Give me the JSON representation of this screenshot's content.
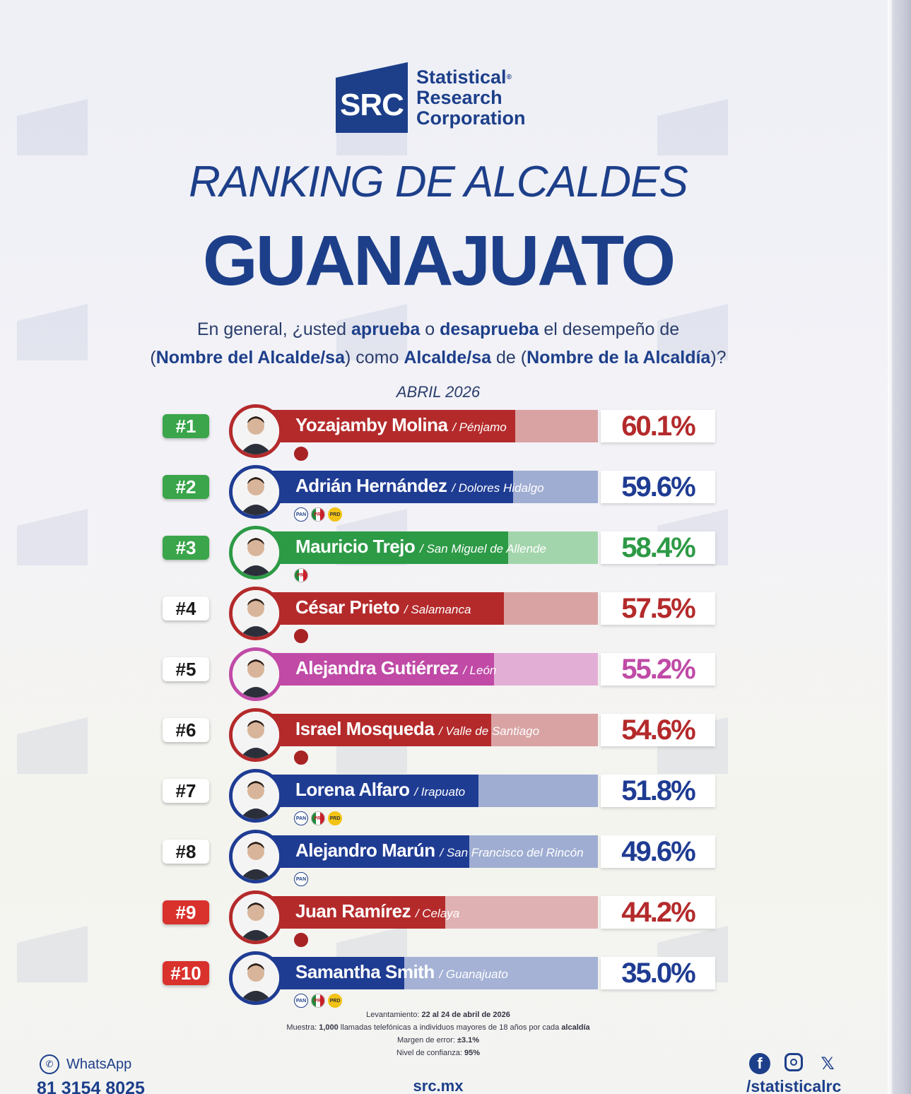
{
  "brand": {
    "logo_mark": "SRC",
    "line1": "Statistical",
    "line2": "Research",
    "line3": "Corporation"
  },
  "title_line1": "RANKING DE ALCALDES",
  "title_line2": "GUANAJUATO",
  "question": {
    "p1": "En general, ¿usted ",
    "b1": "aprueba",
    "p2": " o ",
    "b2": "desaprueba",
    "p3": " el desempeño de",
    "p4": "(",
    "b3": "Nombre del Alcalde/sa",
    "p5": ") como ",
    "b4": "Alcalde/sa",
    "p6": " de (",
    "b5": "Nombre de la Alcaldía",
    "p7": ")?"
  },
  "month": "ABRIL 2026",
  "chart_data": {
    "type": "bar",
    "categories": [
      "Yozajamby Molina",
      "Adrián Hernández",
      "Mauricio Trejo",
      "César Prieto",
      "Alejandra Gutiérrez",
      "Israel Mosqueda",
      "Lorena Alfaro",
      "Alejandro Marún",
      "Juan Ramírez",
      "Samantha Smith"
    ],
    "values": [
      60.1,
      59.6,
      58.4,
      57.5,
      55.2,
      54.6,
      51.8,
      49.6,
      44.2,
      35.0
    ],
    "xlim": [
      0,
      100
    ],
    "rows": [
      {
        "rank": "#1",
        "name": "Yozajamby Molina",
        "city": "/ Pénjamo",
        "value": 60.1,
        "pct": "60.1%",
        "color": "#b42a2b",
        "light": "#d9a3a4",
        "rank_color": "#3aa54a",
        "parties": [
          "morena"
        ]
      },
      {
        "rank": "#2",
        "name": "Adrián Hernández",
        "city": "/ Dolores Hidalgo",
        "value": 59.6,
        "pct": "59.6%",
        "color": "#1f3c93",
        "light": "#9fadd2",
        "rank_color": "#3aa54a",
        "parties": [
          "pan",
          "pri",
          "prd"
        ]
      },
      {
        "rank": "#3",
        "name": "Mauricio Trejo",
        "city": "/ San Miguel de Allende",
        "value": 58.4,
        "pct": "58.4%",
        "color": "#2d9a46",
        "light": "#a3d5ac",
        "rank_color": "#3aa54a",
        "parties": [
          "pri"
        ]
      },
      {
        "rank": "#4",
        "name": "César Prieto",
        "city": "/ Salamanca",
        "value": 57.5,
        "pct": "57.5%",
        "color": "#b42a2b",
        "light": "#d9a3a4",
        "rank_color": "white",
        "parties": [
          "morena"
        ]
      },
      {
        "rank": "#5",
        "name": "Alejandra Gutiérrez",
        "city": "/ León",
        "value": 55.2,
        "pct": "55.2%",
        "color": "#c04aa6",
        "light": "#e2aed6",
        "rank_color": "white",
        "parties": []
      },
      {
        "rank": "#6",
        "name": "Israel Mosqueda",
        "city": "/ Valle de Santiago",
        "value": 54.6,
        "pct": "54.6%",
        "color": "#b42a2b",
        "light": "#d9a3a4",
        "rank_color": "white",
        "parties": [
          "morena"
        ]
      },
      {
        "rank": "#7",
        "name": "Lorena Alfaro",
        "city": "/ Irapuato",
        "value": 51.8,
        "pct": "51.8%",
        "color": "#1f3c93",
        "light": "#9fadd2",
        "rank_color": "white",
        "parties": [
          "pan",
          "pri",
          "prd"
        ]
      },
      {
        "rank": "#8",
        "name": "Alejandro Marún",
        "city": "/ San Francisco del Rincón",
        "value": 49.6,
        "pct": "49.6%",
        "color": "#1f3c93",
        "light": "#9fadd2",
        "rank_color": "white",
        "parties": [
          "pan"
        ]
      },
      {
        "rank": "#9",
        "name": "Juan Ramírez",
        "city": "/ Celaya",
        "value": 44.2,
        "pct": "44.2%",
        "color": "#b42a2b",
        "light": "#e0b1b2",
        "rank_color": "#d9312c",
        "parties": [
          "morena"
        ]
      },
      {
        "rank": "#10",
        "name": "Samantha Smith",
        "city": "/ Guanajuato",
        "value": 35.0,
        "pct": "35.0%",
        "color": "#1f3c93",
        "light": "#a5b2d6",
        "rank_color": "#d9312c",
        "parties": [
          "pan",
          "pri",
          "prd"
        ]
      }
    ]
  },
  "party_labels": {
    "pan": "PAN",
    "pri": "PRI",
    "prd": "PRD",
    "morena": ""
  },
  "methodology": {
    "l1_label": "Levantamiento: ",
    "l1_value": "22 al 24 de abril de 2026",
    "l2_label": "Muestra: ",
    "l2_value": "1,000",
    "l2_rest": " llamadas telefónicas a individuos mayores de 18 años por cada ",
    "l2_bold": "alcaldía",
    "l3_label": "Margen de error: ",
    "l3_value": "±3.1%",
    "l4_label": "Nivel de confianza: ",
    "l4_value": "95%"
  },
  "footer": {
    "whatsapp_label": "WhatsApp",
    "phone": "81 3154 8025",
    "site": "src.mx",
    "handle": "/statisticalrc"
  },
  "colors": {
    "brand": "#1d3f8a"
  },
  "icons": [
    "whatsapp-icon",
    "facebook-icon",
    "instagram-icon",
    "x-icon"
  ]
}
